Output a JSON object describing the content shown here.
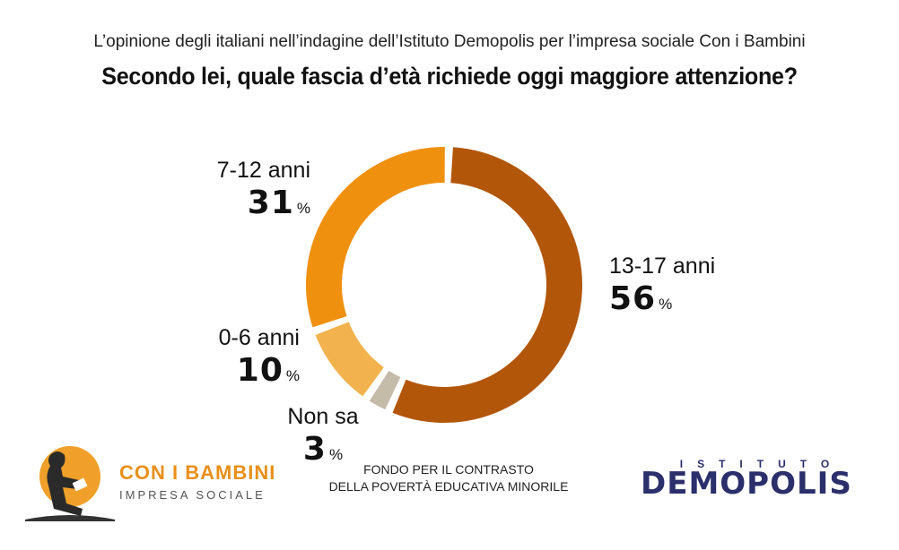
{
  "subtitle": "L’opinione degli italiani nell’indagine dell’Istituto Demopolis per l’impresa sociale Con i Bambini",
  "title": "Secondo lei, quale fascia d’età richiede oggi maggiore attenzione?",
  "chart_data": {
    "type": "pie",
    "variant": "donut",
    "slices": [
      {
        "label": "13-17 anni",
        "value": 56,
        "unit": "%",
        "color": "#b2560a"
      },
      {
        "label": "Non sa",
        "value": 3,
        "unit": "%",
        "color": "#c5bba9"
      },
      {
        "label": "0-6 anni",
        "value": 10,
        "unit": "%",
        "color": "#f2b24d"
      },
      {
        "label": "7-12 anni",
        "value": 31,
        "unit": "%",
        "color": "#ef900f"
      }
    ]
  },
  "logos": {
    "con_i_bambini": {
      "name": "CON I BAMBINI",
      "sub": "IMPRESA SOCIALE"
    },
    "fondo": {
      "line1": "FONDO PER IL CONTRASTO",
      "line2": "DELLA POVERTÀ EDUCATIVA MINORILE"
    },
    "demopolis": {
      "top": "ISTITUTO",
      "name": "DEMOPOLIS"
    }
  },
  "colors": {
    "brand_orange": "#e8901a",
    "demopolis_blue": "#2b2f6b"
  }
}
